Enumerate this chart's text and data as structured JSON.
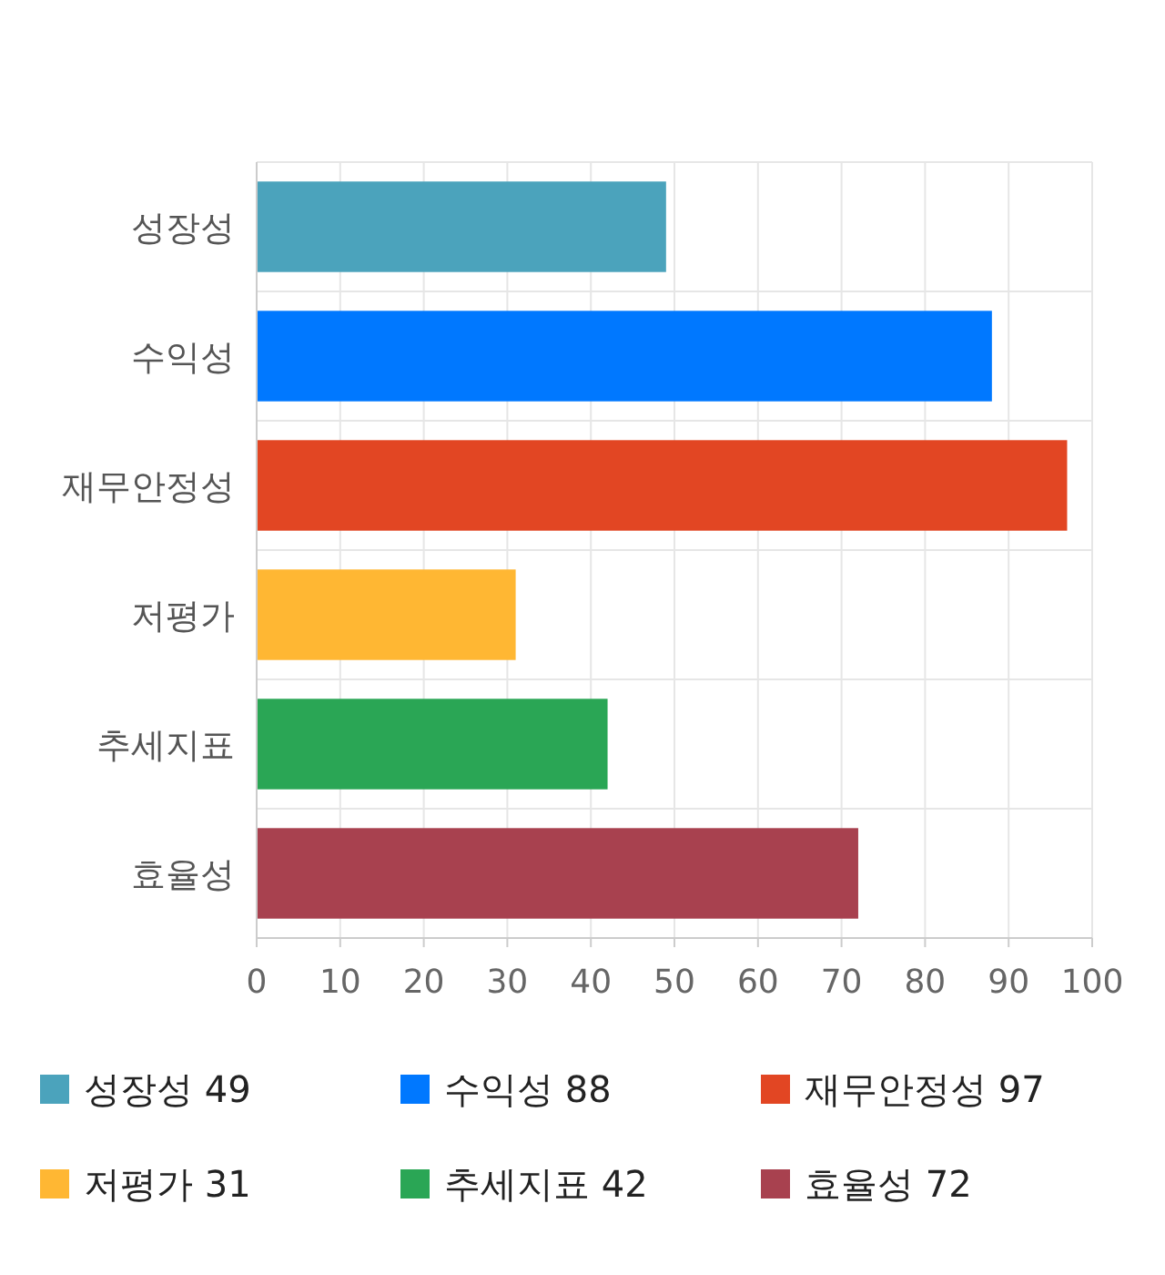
{
  "chart_data": {
    "type": "bar",
    "orientation": "horizontal",
    "categories": [
      "성장성",
      "수익성",
      "재무안정성",
      "저평가",
      "추세지표",
      "효율성"
    ],
    "series": [
      {
        "name": "성장성 49",
        "color": "#4ba3bc",
        "values": [
          49,
          null,
          null,
          null,
          null,
          null
        ]
      },
      {
        "name": "수익성 88",
        "color": "#0078ff",
        "values": [
          null,
          88,
          null,
          null,
          null,
          null
        ]
      },
      {
        "name": "재무안정성 97",
        "color": "#e24623",
        "values": [
          null,
          null,
          97,
          null,
          null,
          null
        ]
      },
      {
        "name": "저평가 31",
        "color": "#ffb733",
        "values": [
          null,
          null,
          null,
          31,
          null,
          null
        ]
      },
      {
        "name": "추세지표 42",
        "color": "#2aa655",
        "values": [
          null,
          null,
          null,
          null,
          42,
          null
        ]
      },
      {
        "name": "효율성 72",
        "color": "#a8414f",
        "values": [
          null,
          null,
          null,
          null,
          null,
          72
        ]
      }
    ],
    "xlim": [
      0,
      100
    ],
    "xticks": [
      0,
      10,
      20,
      30,
      40,
      50,
      60,
      70,
      80,
      90,
      100
    ],
    "grid": true,
    "legend": "bottom"
  }
}
